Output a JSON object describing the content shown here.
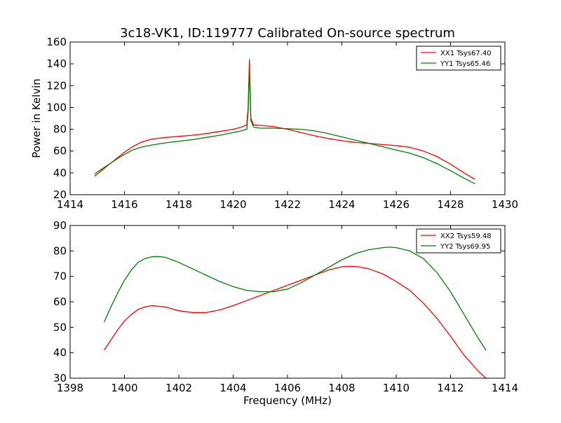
{
  "figure": {
    "title": "3c18-VK1, ID:119777 Calibrated On-source spectrum"
  },
  "chart_data": [
    {
      "type": "line",
      "title": "3c18-VK1, ID:119777 Calibrated On-source spectrum",
      "xlabel": "",
      "ylabel": "Power in Kelvin",
      "xlim": [
        1414,
        1430
      ],
      "ylim": [
        20,
        160
      ],
      "xticks": [
        1414,
        1416,
        1418,
        1420,
        1422,
        1424,
        1426,
        1428,
        1430
      ],
      "yticks": [
        20,
        40,
        60,
        80,
        100,
        120,
        140,
        160
      ],
      "grid": false,
      "legend_position": "top-right",
      "series": [
        {
          "name": "XX1 Tsys67.40",
          "color": "#ff0000",
          "x": [
            1414.9,
            1415.2,
            1415.5,
            1415.8,
            1416.0,
            1416.3,
            1416.6,
            1417.0,
            1417.5,
            1418.0,
            1418.5,
            1419.0,
            1419.5,
            1420.0,
            1420.3,
            1420.5,
            1420.55,
            1420.6,
            1420.65,
            1420.75,
            1421.0,
            1421.5,
            1422.0,
            1422.5,
            1423.0,
            1423.5,
            1424.0,
            1424.5,
            1425.0,
            1425.5,
            1426.0,
            1426.5,
            1427.0,
            1427.5,
            1428.0,
            1428.5,
            1428.9
          ],
          "y": [
            37,
            43,
            49,
            55,
            59,
            64,
            68,
            71,
            72.5,
            73.5,
            74.5,
            76,
            78,
            80,
            82,
            84,
            100,
            144,
            90,
            84,
            83.5,
            82.5,
            80,
            77,
            74,
            71.5,
            69.5,
            68,
            67,
            66,
            65,
            63.5,
            60,
            55,
            48,
            40,
            34
          ]
        },
        {
          "name": "YY1 Tsys65.46",
          "color": "#008000",
          "x": [
            1414.9,
            1415.2,
            1415.5,
            1415.8,
            1416.0,
            1416.3,
            1416.6,
            1417.0,
            1417.5,
            1418.0,
            1418.5,
            1419.0,
            1419.5,
            1420.0,
            1420.3,
            1420.5,
            1420.55,
            1420.6,
            1420.65,
            1420.75,
            1421.0,
            1421.5,
            1422.0,
            1422.5,
            1423.0,
            1423.5,
            1424.0,
            1424.5,
            1425.0,
            1425.5,
            1426.0,
            1426.5,
            1427.0,
            1427.5,
            1428.0,
            1428.5,
            1428.9
          ],
          "y": [
            39,
            44,
            49,
            54,
            57,
            61,
            63.5,
            65.5,
            67.5,
            69,
            70.5,
            72.5,
            74.5,
            77,
            78.5,
            80,
            95,
            135,
            88,
            82,
            81,
            81,
            80.5,
            80,
            78.5,
            76,
            73,
            70,
            67,
            64,
            61,
            58,
            54,
            48.5,
            42,
            35,
            30
          ]
        }
      ]
    },
    {
      "type": "line",
      "title": "",
      "xlabel": "Frequency (MHz)",
      "ylabel": "",
      "xlim": [
        1398,
        1414
      ],
      "ylim": [
        30,
        90
      ],
      "xticks": [
        1398,
        1400,
        1402,
        1404,
        1406,
        1408,
        1410,
        1412,
        1414
      ],
      "yticks": [
        30,
        40,
        50,
        60,
        70,
        80,
        90
      ],
      "grid": false,
      "legend_position": "top-right",
      "series": [
        {
          "name": "XX2 Tsys59.48",
          "color": "#ff0000",
          "x": [
            1399.25,
            1399.5,
            1399.75,
            1400.0,
            1400.25,
            1400.5,
            1400.75,
            1401.0,
            1401.5,
            1402.0,
            1402.5,
            1403.0,
            1403.5,
            1404.0,
            1404.5,
            1405.0,
            1405.5,
            1406.0,
            1406.5,
            1407.0,
            1407.5,
            1408.0,
            1408.3,
            1408.6,
            1409.0,
            1409.5,
            1410.0,
            1410.5,
            1411.0,
            1411.5,
            1412.0,
            1412.5,
            1413.0,
            1413.3
          ],
          "y": [
            41,
            45,
            49,
            52.5,
            55,
            57,
            58,
            58.5,
            58,
            56.5,
            55.8,
            55.8,
            56.8,
            58.5,
            60.5,
            62.5,
            64.5,
            66.5,
            68.5,
            70.5,
            72.5,
            73.8,
            74,
            73.8,
            73,
            71,
            68,
            64.5,
            59.5,
            53.5,
            46.5,
            39,
            33,
            30
          ]
        },
        {
          "name": "YY2 Tsys69.95",
          "color": "#008000",
          "x": [
            1399.25,
            1399.5,
            1399.75,
            1400.0,
            1400.25,
            1400.5,
            1400.75,
            1401.0,
            1401.25,
            1401.5,
            1402.0,
            1402.5,
            1403.0,
            1403.5,
            1404.0,
            1404.5,
            1405.0,
            1405.5,
            1406.0,
            1406.5,
            1407.0,
            1407.5,
            1408.0,
            1408.5,
            1409.0,
            1409.5,
            1409.75,
            1410.0,
            1410.5,
            1411.0,
            1411.5,
            1412.0,
            1412.5,
            1413.0,
            1413.3
          ],
          "y": [
            52,
            58,
            63.5,
            68.5,
            72.5,
            75.5,
            77,
            77.7,
            77.8,
            77.5,
            75.5,
            73,
            70.5,
            68,
            66,
            64.5,
            64,
            64,
            65,
            67.5,
            70.5,
            73.5,
            76.5,
            79,
            80.5,
            81.3,
            81.5,
            81.3,
            80,
            77,
            71.5,
            64,
            55,
            46,
            41
          ]
        }
      ]
    }
  ]
}
